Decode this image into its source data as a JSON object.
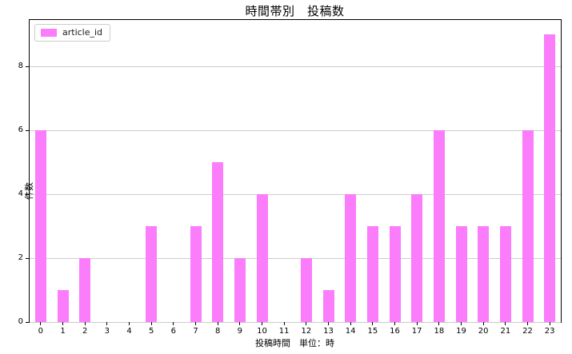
{
  "chart_data": {
    "type": "bar",
    "title": "時間帯別　投稿数",
    "xlabel": "投稿時間　単位：時",
    "ylabel": "件数",
    "categories": [
      "0",
      "1",
      "2",
      "3",
      "4",
      "5",
      "6",
      "7",
      "8",
      "9",
      "10",
      "11",
      "12",
      "13",
      "14",
      "15",
      "16",
      "17",
      "18",
      "19",
      "20",
      "21",
      "22",
      "23"
    ],
    "values": [
      6,
      1,
      2,
      0,
      0,
      3,
      0,
      3,
      5,
      2,
      4,
      0,
      2,
      1,
      4,
      3,
      3,
      4,
      6,
      3,
      3,
      3,
      6,
      9
    ],
    "ylim": [
      0,
      9.45
    ],
    "yticks": [
      0,
      2,
      4,
      6,
      8
    ],
    "grid": "horizontal-only",
    "legend": {
      "label": "article_id",
      "position": "upper-left"
    },
    "colors": {
      "bar": "#FB7DFB",
      "grid": "#CCCCCC",
      "spine": "#000000",
      "text": "#000000",
      "legend_border": "#CCCCCC",
      "background": "#FFFFFF"
    }
  }
}
